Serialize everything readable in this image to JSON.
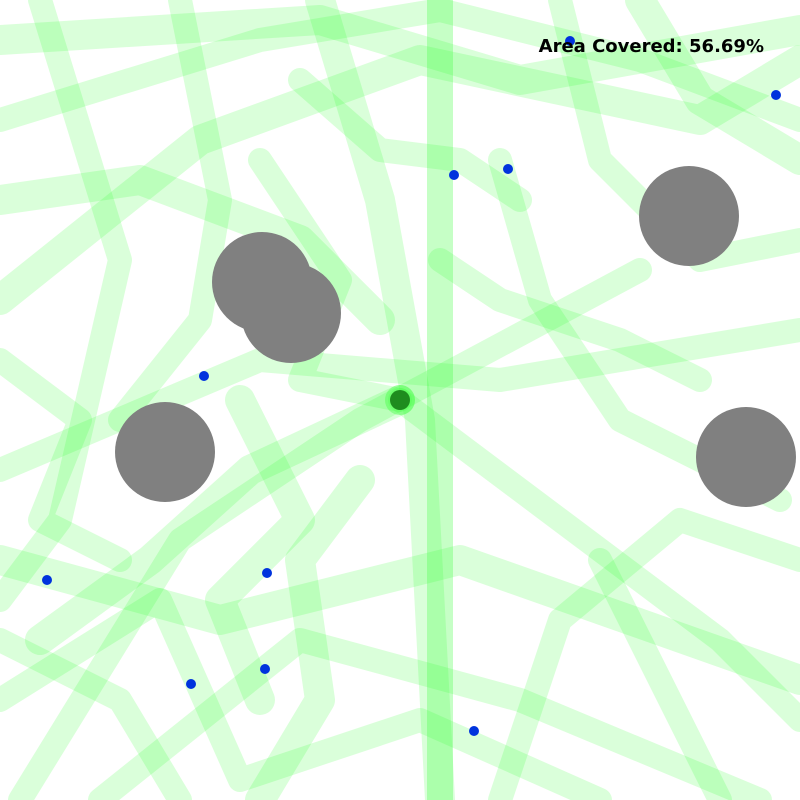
{
  "hud": {
    "area_covered_label": "Area Covered: 56.69%",
    "area_covered_percent": 56.69
  },
  "colors": {
    "background": "#ffffff",
    "trail": "#33ff33",
    "obstacle": "#808080",
    "agent": "#1e8c1e",
    "agent_glow": "#33ff33",
    "target": "#0033dd"
  },
  "icons": {
    "agent": "agent-dot-icon",
    "target": "target-dot-icon",
    "obstacle": "obstacle-circle-icon"
  }
}
